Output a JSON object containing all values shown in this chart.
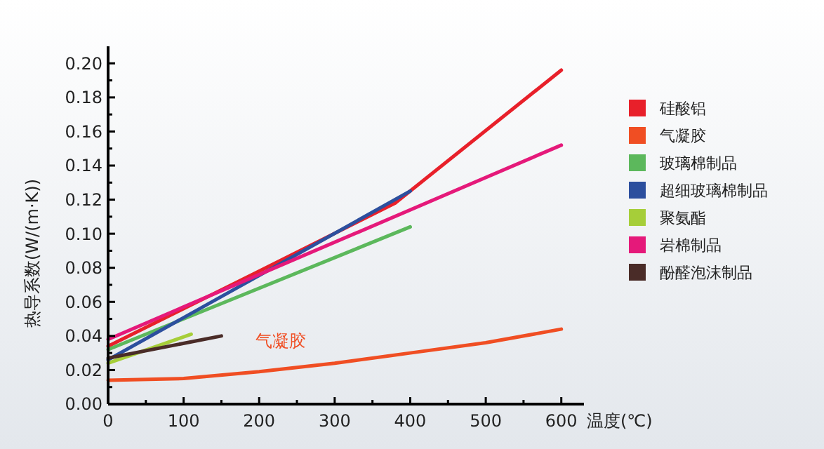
{
  "chart_data": {
    "type": "line",
    "xlabel": "温度(℃)",
    "ylabel": "热导系数(W/(m·K))",
    "xlim": [
      0,
      630
    ],
    "ylim": [
      0,
      0.21
    ],
    "xticks": [
      0,
      {
        "value": 50,
        "label": null
      },
      100,
      {
        "value": 150,
        "label": null
      },
      200,
      {
        "value": 250,
        "label": null
      },
      300,
      {
        "value": 350,
        "label": null
      },
      400,
      {
        "value": 450,
        "label": null
      },
      500,
      {
        "value": 550,
        "label": null
      },
      600
    ],
    "yticks": [
      {
        "value": 0,
        "label": "0.00"
      },
      {
        "value": 0.01,
        "label": null
      },
      0.02,
      {
        "value": 0.03,
        "label": null
      },
      0.04,
      {
        "value": 0.05,
        "label": null
      },
      0.06,
      {
        "value": 0.07,
        "label": null
      },
      0.08,
      {
        "value": 0.09,
        "label": null
      },
      {
        "value": 0.1,
        "label": "0.10"
      },
      {
        "value": 0.11,
        "label": null
      },
      0.12,
      {
        "value": 0.13,
        "label": null
      },
      0.14,
      {
        "value": 0.15,
        "label": null
      },
      0.16,
      {
        "value": 0.17,
        "label": null
      },
      0.18,
      {
        "value": 0.19,
        "label": null
      },
      {
        "value": 0.2,
        "label": "0.20"
      }
    ],
    "legend": "right",
    "marker": "none",
    "line_style": "solid",
    "grid": false,
    "annotations": [
      "气凝胶"
    ],
    "series": [
      {
        "name": "硅酸铝",
        "color": "#e8202a",
        "x": [
          0,
          200,
          380,
          600
        ],
        "values": [
          0.034,
          0.078,
          0.118,
          0.196
        ]
      },
      {
        "name": "气凝胶",
        "color": "#f04e23",
        "x": [
          0,
          100,
          200,
          300,
          400,
          500,
          600
        ],
        "values": [
          0.014,
          0.015,
          0.019,
          0.024,
          0.03,
          0.036,
          0.044
        ]
      },
      {
        "name": "玻璃棉制品",
        "color": "#5cb85c",
        "x": [
          0,
          400
        ],
        "values": [
          0.032,
          0.104
        ]
      },
      {
        "name": "超细玻璃棉制品",
        "color": "#2c4f9e",
        "x": [
          0,
          400
        ],
        "values": [
          0.026,
          0.125
        ]
      },
      {
        "name": "聚氨酯",
        "color": "#a6ce39",
        "x": [
          0,
          110
        ],
        "values": [
          0.024,
          0.041
        ]
      },
      {
        "name": "岩棉制品",
        "color": "#e5197a",
        "x": [
          0,
          600
        ],
        "values": [
          0.038,
          0.152
        ]
      },
      {
        "name": "酚醛泡沫制品",
        "color": "#4a2c28",
        "x": [
          0,
          150
        ],
        "values": [
          0.027,
          0.04
        ]
      }
    ]
  }
}
